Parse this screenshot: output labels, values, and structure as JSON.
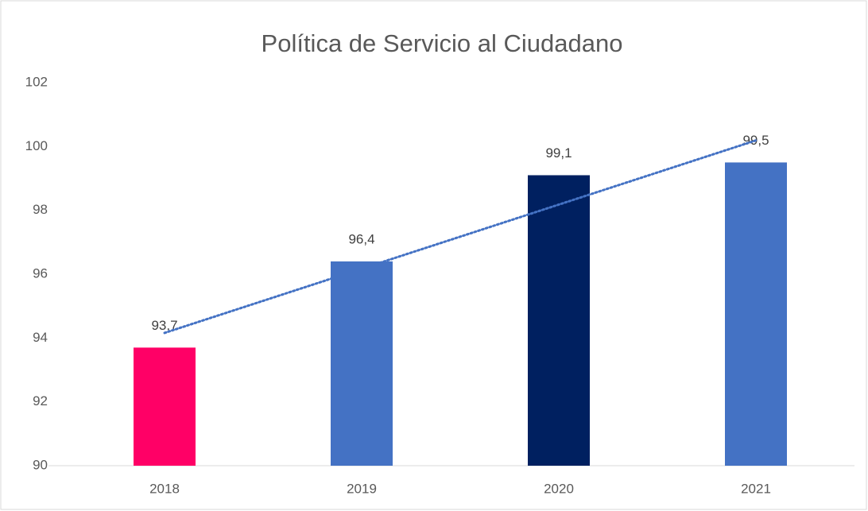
{
  "chart_data": {
    "type": "bar",
    "title": "Política de Servicio al Ciudadano",
    "categories": [
      "2018",
      "2019",
      "2020",
      "2021"
    ],
    "values": [
      93.7,
      96.4,
      99.1,
      99.5
    ],
    "value_labels": [
      "93,7",
      "96,4",
      "99,1",
      "99,5"
    ],
    "colors": [
      "#ff0066",
      "#4472c4",
      "#002060",
      "#4472c4"
    ],
    "ylim": [
      90,
      102
    ],
    "yticks": [
      90,
      92,
      94,
      96,
      98,
      100,
      102
    ],
    "grid": false,
    "trendline": {
      "kind": "linear",
      "color": "#4472c4"
    }
  }
}
